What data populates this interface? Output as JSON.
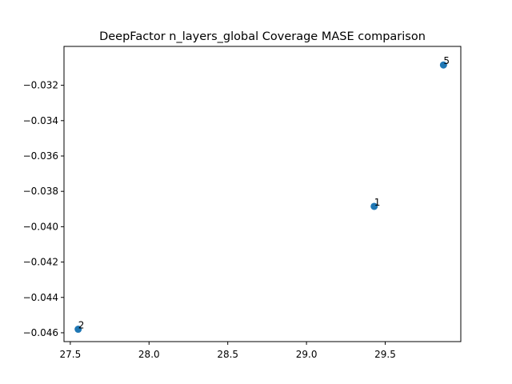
{
  "chart_data": {
    "type": "scatter",
    "title": "DeepFactor n_layers_global Coverage MASE comparison",
    "xlabel": "",
    "ylabel": "",
    "xlim": [
      27.46,
      29.98
    ],
    "ylim": [
      -0.0465,
      -0.0298
    ],
    "grid": false,
    "x_ticks": [
      27.5,
      28.0,
      28.5,
      29.0,
      29.5
    ],
    "x_tick_labels": [
      "27.5",
      "28.0",
      "28.5",
      "29.0",
      "29.5"
    ],
    "y_ticks": [
      -0.046,
      -0.044,
      -0.042,
      -0.04,
      -0.038,
      -0.036,
      -0.034,
      -0.032
    ],
    "y_tick_labels": [
      "−0.046",
      "−0.044",
      "−0.042",
      "−0.040",
      "−0.038",
      "−0.036",
      "−0.034",
      "−0.032"
    ],
    "points": [
      {
        "x": 27.55,
        "y": -0.0458,
        "label": "2"
      },
      {
        "x": 29.43,
        "y": -0.03885,
        "label": "1"
      },
      {
        "x": 29.87,
        "y": -0.03085,
        "label": "5"
      }
    ],
    "colors": {
      "point": "#1f77b4"
    }
  }
}
